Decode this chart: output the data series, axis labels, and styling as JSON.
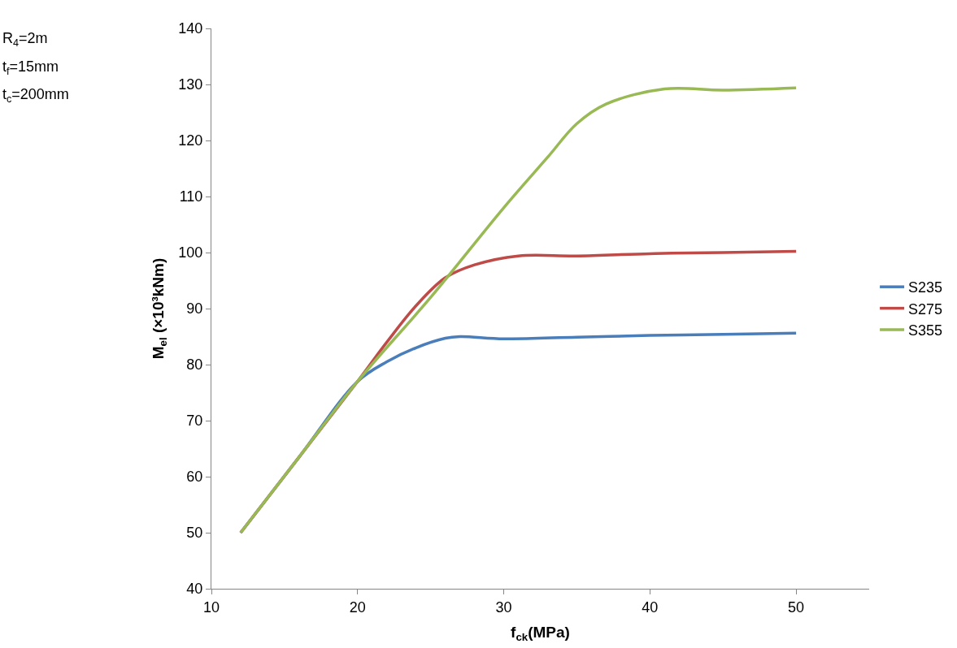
{
  "chart_data": {
    "type": "line",
    "xlabel": "f$_{ck}$(MPa)",
    "ylabel": "M$_{el}$ (×10³kNm)",
    "annotations": [
      "R$_{4}$=2m",
      "t$_{f}$=15mm",
      "t$_{c}$=200mm"
    ],
    "xlim": [
      10,
      55
    ],
    "xticks": [
      10,
      20,
      30,
      40,
      50
    ],
    "ylim": [
      40,
      140
    ],
    "yticks": [
      40,
      50,
      60,
      70,
      80,
      90,
      100,
      110,
      120,
      130,
      140
    ],
    "grid": false,
    "legend": "right",
    "marker": "none",
    "line_style": "solid",
    "series": [
      {
        "name": "S235",
        "color": "#4a7ebb",
        "x": [
          12,
          16,
          20,
          22,
          24,
          26,
          27,
          30,
          35,
          40,
          45,
          50
        ],
        "values": [
          50,
          63.5,
          77,
          80.5,
          83,
          84.7,
          85,
          84.6,
          84.9,
          85.2,
          85.4,
          85.6
        ]
      },
      {
        "name": "S275",
        "color": "#be4b48",
        "x": [
          12,
          16,
          20,
          22,
          24,
          26,
          28,
          31,
          35,
          40,
          45,
          50
        ],
        "values": [
          50,
          63.5,
          77,
          84,
          90.5,
          95.5,
          97.8,
          99.4,
          99.4,
          99.8,
          100,
          100.2
        ]
      },
      {
        "name": "S355",
        "color": "#98b954",
        "x": [
          12,
          16,
          20,
          25,
          30,
          33,
          35,
          37,
          41,
          45,
          50
        ],
        "values": [
          50,
          63.5,
          77,
          92,
          108,
          117,
          123,
          126.5,
          129.2,
          129,
          129.4
        ]
      }
    ]
  }
}
